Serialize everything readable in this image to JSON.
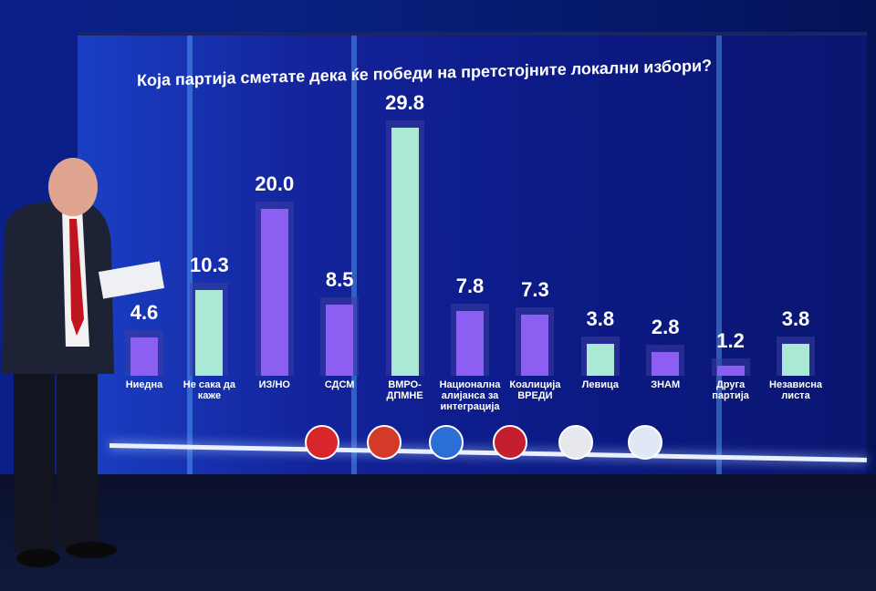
{
  "chart_data": {
    "type": "bar",
    "title": "Која партија сметате дека ќе победи на претстојните локални избори?",
    "categories": [
      "Ниедна",
      "Не сака да\nкаже",
      "ИЗ/НО",
      "СДСМ",
      "ВМРО-\nДПМНЕ",
      "Национална\nалијанса за\nинтеграција",
      "Коалиција\nВРЕДИ",
      "Левица",
      "ЗНАМ",
      "Друга\nпартија",
      "Независна\nлиста"
    ],
    "values": [
      4.6,
      10.3,
      20,
      8.5,
      29.8,
      7.8,
      7.3,
      3.8,
      2.8,
      1.2,
      3.8
    ],
    "value_labels": [
      "4.6",
      "10.3",
      "20.0",
      "8.5",
      "29.8",
      "7.8",
      "7.3",
      "3.8",
      "2.8",
      "1.2",
      "3.8"
    ],
    "colors": [
      "#8d5ef2",
      "#a9e9d6",
      "#8d5ef2",
      "#8d5ef2",
      "#a9e9d6",
      "#8d5ef2",
      "#8d5ef2",
      "#a9e9d6",
      "#8d5ef2",
      "#8d5ef2",
      "#a9e9d6"
    ]
  }
}
